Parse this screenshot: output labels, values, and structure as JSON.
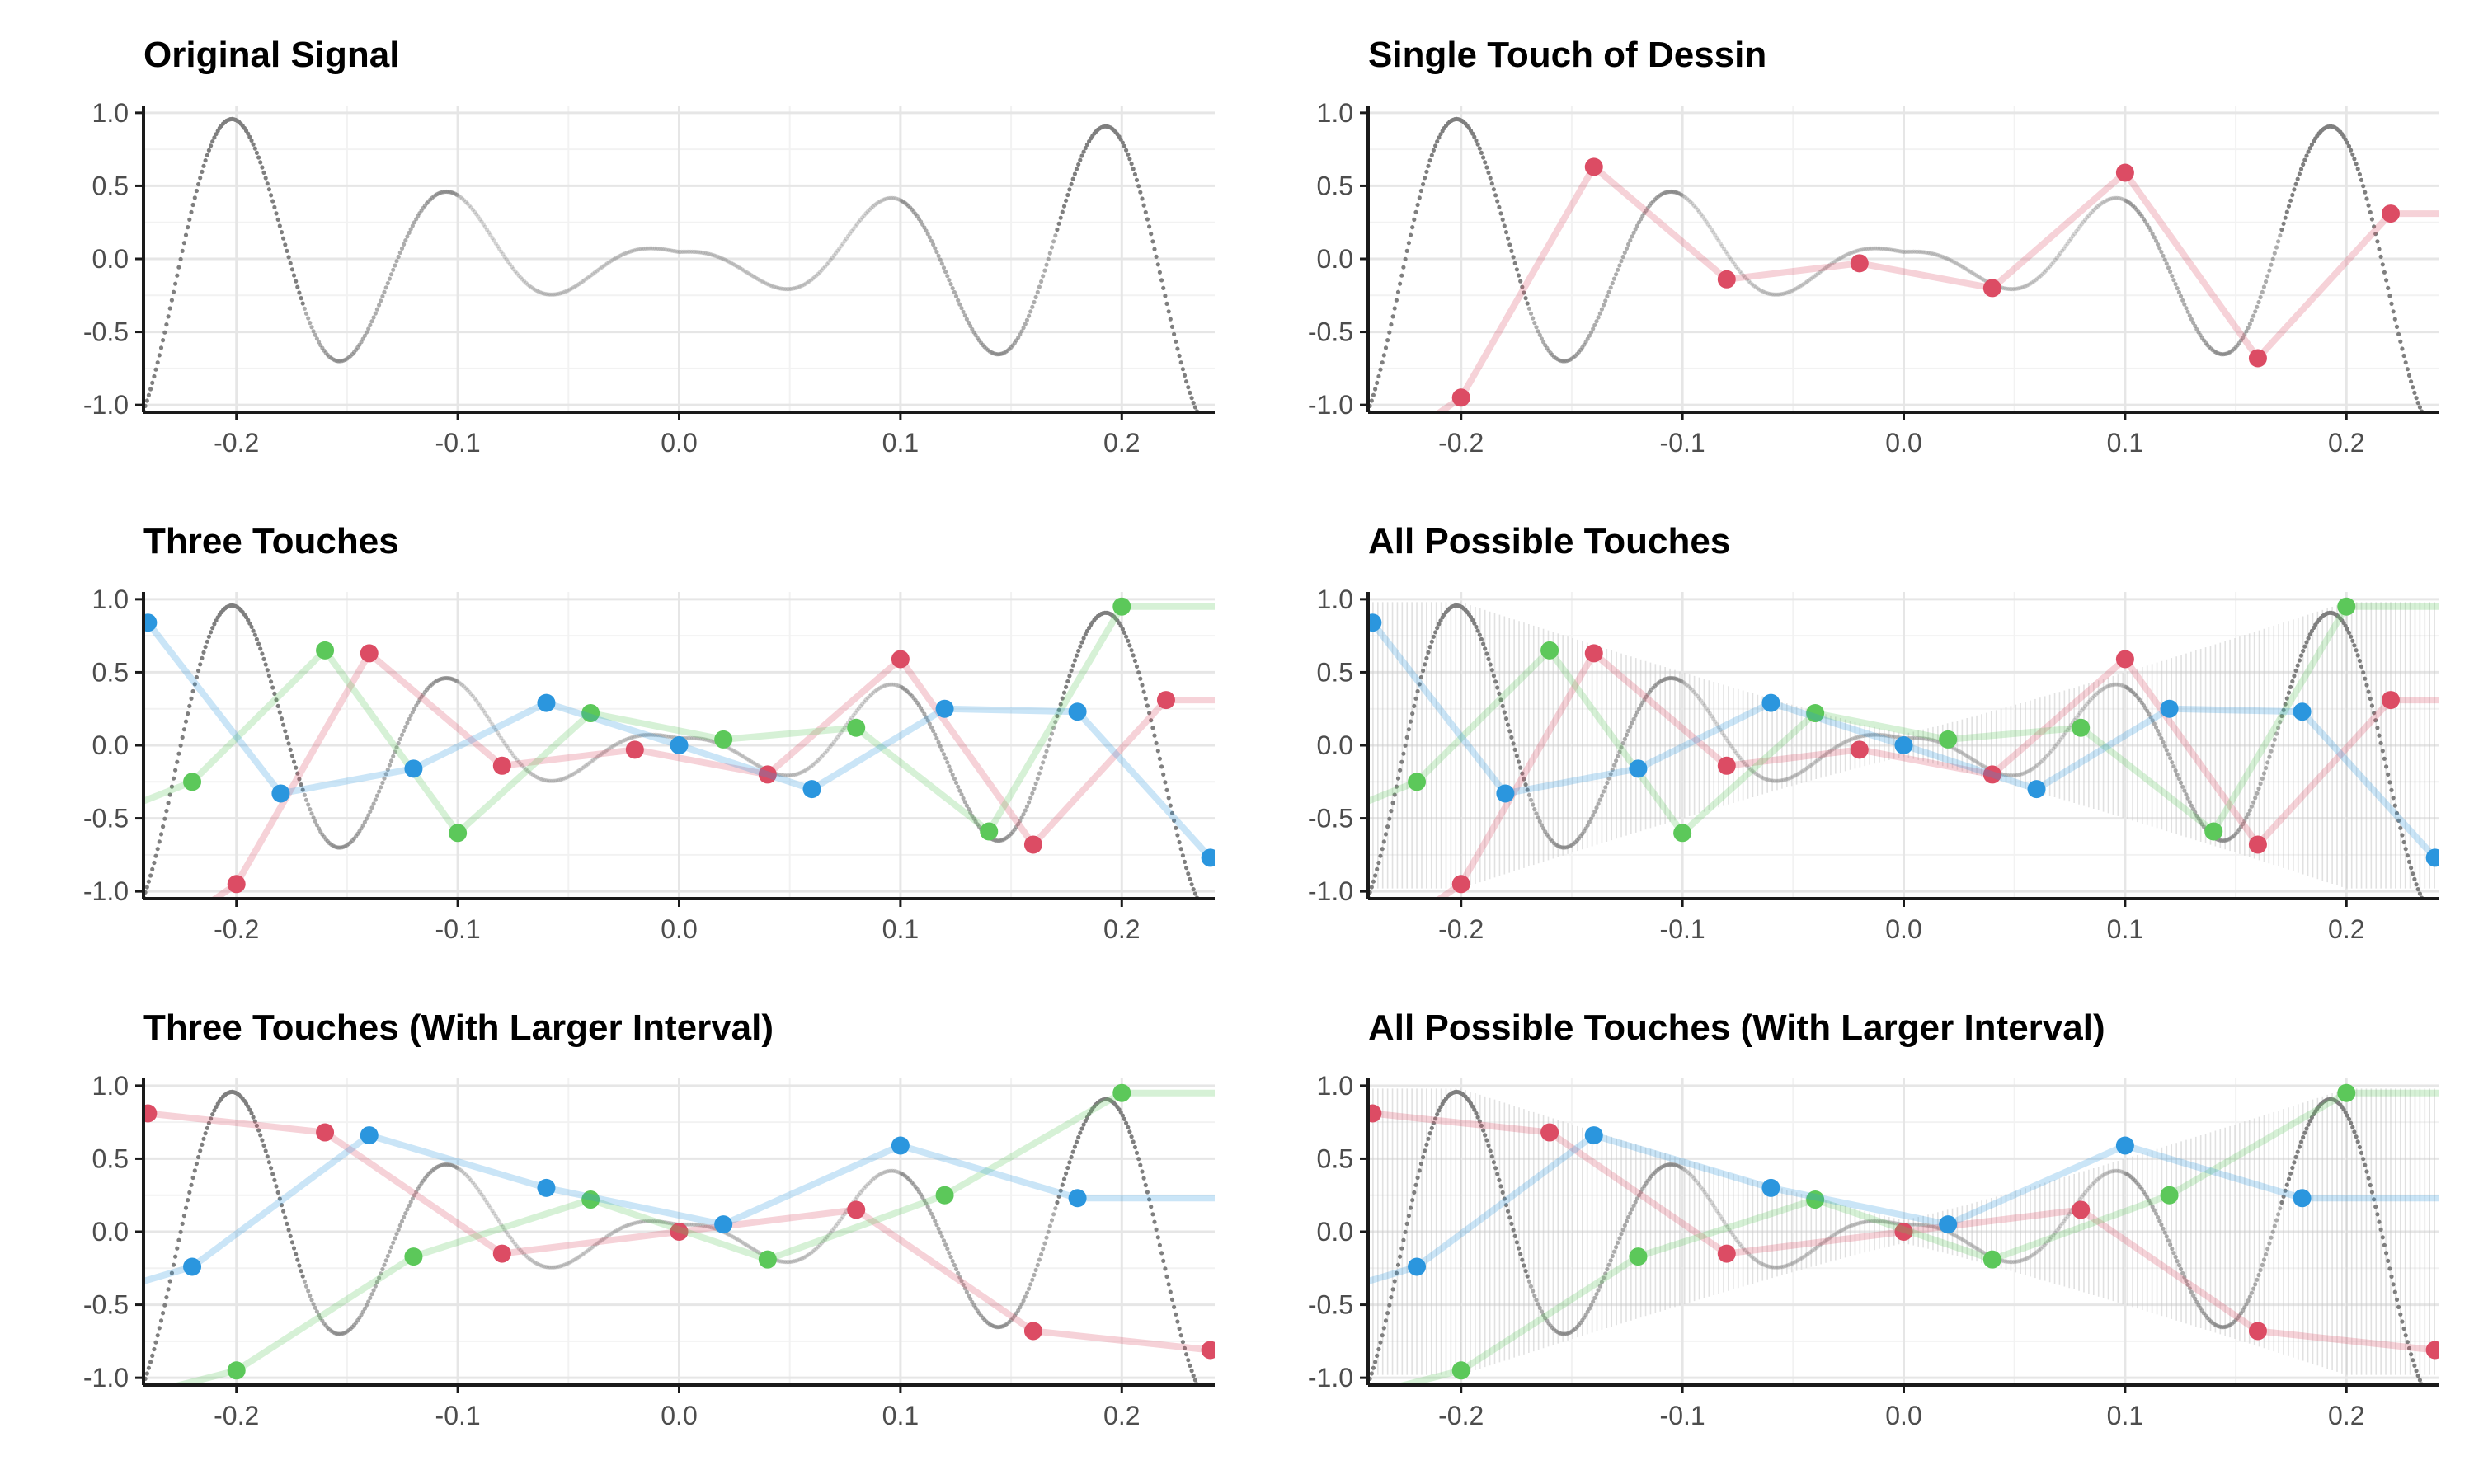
{
  "figure": {
    "panels": [
      {
        "title": "Original Signal"
      },
      {
        "title": "Single Touch of Dessin"
      },
      {
        "title": "Three Touches"
      },
      {
        "title": "All Possible Touches"
      },
      {
        "title": "Three Touches (With Larger Interval)"
      },
      {
        "title": "All Possible Touches (With Larger Interval)"
      }
    ]
  },
  "chart_data": [
    {
      "type": "scatter",
      "title": "Original Signal",
      "xlim": [
        -0.242,
        0.242
      ],
      "ylim": [
        -1.05,
        1.05
      ],
      "xticks": [
        "-0.2",
        "-0.1",
        "0.0",
        "0.1",
        "0.2"
      ],
      "yticks": [
        "-1.0",
        "-0.5",
        "0.0",
        "0.5",
        "1.0"
      ],
      "grid": true,
      "signal": "dense dotted curve (gray)",
      "signal_color": "#7f7f7f",
      "series": []
    },
    {
      "type": "line",
      "title": "Single Touch of Dessin",
      "xlim": [
        -0.242,
        0.242
      ],
      "ylim": [
        -1.05,
        1.05
      ],
      "xticks": [
        "-0.2",
        "-0.1",
        "0.0",
        "0.1",
        "0.2"
      ],
      "yticks": [
        "-1.0",
        "-0.5",
        "0.0",
        "0.5",
        "1.0"
      ],
      "grid": true,
      "series": [
        {
          "color": "#dc4c64",
          "x": [
            -0.2,
            -0.14,
            -0.08,
            -0.02,
            0.04,
            0.1,
            0.16,
            0.22
          ],
          "y": [
            -0.95,
            0.63,
            -0.14,
            -0.03,
            -0.2,
            0.59,
            -0.68,
            0.31
          ]
        }
      ]
    },
    {
      "type": "line",
      "title": "Three Touches",
      "xlim": [
        -0.242,
        0.242
      ],
      "ylim": [
        -1.05,
        1.05
      ],
      "xticks": [
        "-0.2",
        "-0.1",
        "0.0",
        "0.1",
        "0.2"
      ],
      "yticks": [
        "-1.0",
        "-0.5",
        "0.0",
        "0.5",
        "1.0"
      ],
      "grid": true,
      "series": [
        {
          "color": "#dc4c64",
          "x": [
            -0.2,
            -0.14,
            -0.08,
            -0.02,
            0.04,
            0.1,
            0.16,
            0.22
          ],
          "y": [
            -0.95,
            0.63,
            -0.14,
            -0.03,
            -0.2,
            0.59,
            -0.68,
            0.31
          ]
        },
        {
          "color": "#5cc85a",
          "x": [
            -0.22,
            -0.16,
            -0.1,
            -0.04,
            0.02,
            0.08,
            0.14,
            0.2
          ],
          "y": [
            -0.25,
            0.65,
            -0.6,
            0.22,
            0.04,
            0.12,
            -0.59,
            0.95
          ]
        },
        {
          "color": "#2b96de",
          "x": [
            -0.24,
            -0.18,
            -0.12,
            -0.06,
            0.0,
            0.06,
            0.12,
            0.18,
            0.24
          ],
          "y": [
            0.84,
            -0.33,
            -0.16,
            0.29,
            0.0,
            -0.3,
            0.25,
            0.23,
            -0.77
          ]
        }
      ]
    },
    {
      "type": "line",
      "title": "All Possible Touches",
      "xlim": [
        -0.242,
        0.242
      ],
      "ylim": [
        -1.05,
        1.05
      ],
      "xticks": [
        "-0.2",
        "-0.1",
        "0.0",
        "0.1",
        "0.2"
      ],
      "yticks": [
        "-1.0",
        "-0.5",
        "0.0",
        "0.5",
        "1.0"
      ],
      "grid": true,
      "shaded_band": "all possible touches (light gray)",
      "series": [
        {
          "color": "#dc4c64",
          "x": [
            -0.2,
            -0.14,
            -0.08,
            -0.02,
            0.04,
            0.1,
            0.16,
            0.22
          ],
          "y": [
            -0.95,
            0.63,
            -0.14,
            -0.03,
            -0.2,
            0.59,
            -0.68,
            0.31
          ]
        },
        {
          "color": "#5cc85a",
          "x": [
            -0.22,
            -0.16,
            -0.1,
            -0.04,
            0.02,
            0.08,
            0.14,
            0.2
          ],
          "y": [
            -0.25,
            0.65,
            -0.6,
            0.22,
            0.04,
            0.12,
            -0.59,
            0.95
          ]
        },
        {
          "color": "#2b96de",
          "x": [
            -0.24,
            -0.18,
            -0.12,
            -0.06,
            0.0,
            0.06,
            0.12,
            0.18,
            0.24
          ],
          "y": [
            0.84,
            -0.33,
            -0.16,
            0.29,
            0.0,
            -0.3,
            0.25,
            0.23,
            -0.77
          ]
        }
      ]
    },
    {
      "type": "line",
      "title": "Three Touches (With Larger Interval)",
      "xlim": [
        -0.242,
        0.242
      ],
      "ylim": [
        -1.05,
        1.05
      ],
      "xticks": [
        "-0.2",
        "-0.1",
        "0.0",
        "0.1",
        "0.2"
      ],
      "yticks": [
        "-1.0",
        "-0.5",
        "0.0",
        "0.5",
        "1.0"
      ],
      "grid": true,
      "series": [
        {
          "color": "#dc4c64",
          "x": [
            -0.24,
            -0.16,
            -0.08,
            0.0,
            0.08,
            0.16,
            0.24
          ],
          "y": [
            0.81,
            0.68,
            -0.15,
            0.0,
            0.15,
            -0.68,
            -0.81
          ]
        },
        {
          "color": "#5cc85a",
          "x": [
            -0.2,
            -0.12,
            -0.04,
            0.04,
            0.12,
            0.2
          ],
          "y": [
            -0.95,
            -0.17,
            0.22,
            -0.19,
            0.25,
            0.95
          ]
        },
        {
          "color": "#2b96de",
          "x": [
            -0.22,
            -0.14,
            -0.06,
            0.02,
            0.1,
            0.18
          ],
          "y": [
            -0.24,
            0.66,
            0.3,
            0.05,
            0.59,
            0.23
          ]
        }
      ]
    },
    {
      "type": "line",
      "title": "All Possible Touches (With Larger Interval)",
      "xlim": [
        -0.242,
        0.242
      ],
      "ylim": [
        -1.05,
        1.05
      ],
      "xticks": [
        "-0.2",
        "-0.1",
        "0.0",
        "0.1",
        "0.2"
      ],
      "yticks": [
        "-1.0",
        "-0.5",
        "0.0",
        "0.5",
        "1.0"
      ],
      "grid": true,
      "shaded_band": "all possible touches (light gray)",
      "series": [
        {
          "color": "#dc4c64",
          "x": [
            -0.24,
            -0.16,
            -0.08,
            0.0,
            0.08,
            0.16,
            0.24
          ],
          "y": [
            0.81,
            0.68,
            -0.15,
            0.0,
            0.15,
            -0.68,
            -0.81
          ]
        },
        {
          "color": "#5cc85a",
          "x": [
            -0.2,
            -0.12,
            -0.04,
            0.04,
            0.12,
            0.2
          ],
          "y": [
            -0.95,
            -0.17,
            0.22,
            -0.19,
            0.25,
            0.95
          ]
        },
        {
          "color": "#2b96de",
          "x": [
            -0.22,
            -0.14,
            -0.06,
            0.02,
            0.1,
            0.18
          ],
          "y": [
            -0.24,
            0.66,
            0.3,
            0.05,
            0.59,
            0.23
          ]
        }
      ]
    }
  ]
}
